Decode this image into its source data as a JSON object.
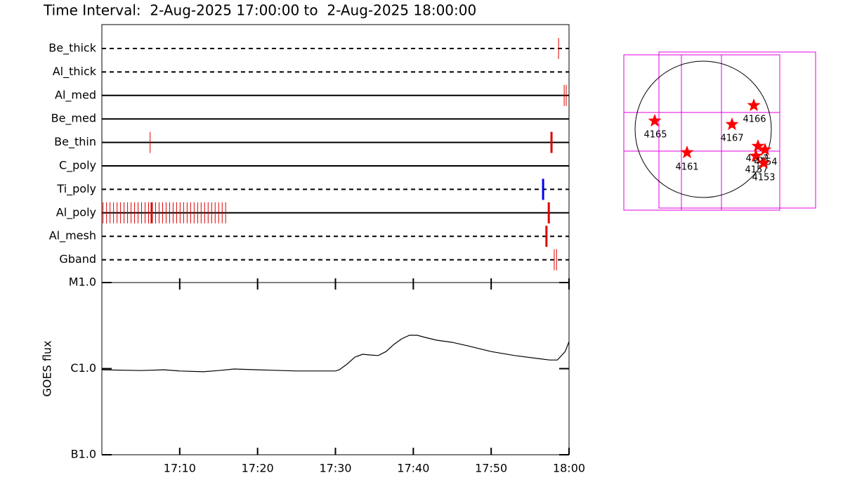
{
  "chart_data": [
    {
      "type": "timeline",
      "title": "Time Interval:  2-Aug-2025 17:00:00 to  2-Aug-2025 18:00:00",
      "xlim": [
        0,
        60
      ],
      "rows": [
        {
          "name": "Be_thick",
          "line": "dashed",
          "events": [
            {
              "x": 58.66,
              "color": "#dd0000",
              "thick": false
            }
          ]
        },
        {
          "name": "Al_thick",
          "line": "dashed",
          "events": []
        },
        {
          "name": "Al_med",
          "line": "solid",
          "events": [
            {
              "x": 59.38,
              "color": "#dd0000",
              "thick": false
            },
            {
              "x": 59.64,
              "color": "#dd0000",
              "thick": false
            }
          ]
        },
        {
          "name": "Be_med",
          "line": "solid",
          "events": []
        },
        {
          "name": "Be_thin",
          "line": "solid",
          "events": [
            {
              "x": 6.2,
              "color": "#dd0000",
              "thick": false
            },
            {
              "x": 57.75,
              "color": "#dd0000",
              "thick": true
            }
          ]
        },
        {
          "name": "C_poly",
          "line": "solid",
          "events": []
        },
        {
          "name": "Ti_poly",
          "line": "dashed",
          "events": [
            {
              "x": 56.67,
              "color": "#0000ee",
              "thick": true
            }
          ]
        },
        {
          "name": "Al_poly",
          "line": "solid",
          "events": [
            {
              "x": 0.15,
              "color": "#dd0000",
              "thick": false
            },
            {
              "x": 0.6,
              "color": "#dd0000",
              "thick": false
            },
            {
              "x": 1.05,
              "color": "#dd0000",
              "thick": false
            },
            {
              "x": 1.5,
              "color": "#dd0000",
              "thick": false
            },
            {
              "x": 1.95,
              "color": "#dd0000",
              "thick": false
            },
            {
              "x": 2.4,
              "color": "#dd0000",
              "thick": false
            },
            {
              "x": 2.85,
              "color": "#dd0000",
              "thick": false
            },
            {
              "x": 3.3,
              "color": "#dd0000",
              "thick": false
            },
            {
              "x": 3.75,
              "color": "#dd0000",
              "thick": false
            },
            {
              "x": 4.2,
              "color": "#dd0000",
              "thick": false
            },
            {
              "x": 4.65,
              "color": "#dd0000",
              "thick": false
            },
            {
              "x": 5.1,
              "color": "#dd0000",
              "thick": false
            },
            {
              "x": 5.55,
              "color": "#dd0000",
              "thick": false
            },
            {
              "x": 6.0,
              "color": "#dd0000",
              "thick": false
            },
            {
              "x": 6.4,
              "color": "#dd0000",
              "thick": true
            },
            {
              "x": 6.9,
              "color": "#dd0000",
              "thick": false
            },
            {
              "x": 7.35,
              "color": "#dd0000",
              "thick": false
            },
            {
              "x": 7.8,
              "color": "#dd0000",
              "thick": false
            },
            {
              "x": 8.25,
              "color": "#dd0000",
              "thick": false
            },
            {
              "x": 8.7,
              "color": "#dd0000",
              "thick": false
            },
            {
              "x": 9.15,
              "color": "#dd0000",
              "thick": false
            },
            {
              "x": 9.6,
              "color": "#dd0000",
              "thick": false
            },
            {
              "x": 10.05,
              "color": "#dd0000",
              "thick": false
            },
            {
              "x": 10.5,
              "color": "#dd0000",
              "thick": false
            },
            {
              "x": 10.95,
              "color": "#dd0000",
              "thick": false
            },
            {
              "x": 11.4,
              "color": "#dd0000",
              "thick": false
            },
            {
              "x": 11.85,
              "color": "#dd0000",
              "thick": false
            },
            {
              "x": 12.3,
              "color": "#dd0000",
              "thick": false
            },
            {
              "x": 12.75,
              "color": "#dd0000",
              "thick": false
            },
            {
              "x": 13.2,
              "color": "#dd0000",
              "thick": false
            },
            {
              "x": 13.65,
              "color": "#dd0000",
              "thick": false
            },
            {
              "x": 14.1,
              "color": "#dd0000",
              "thick": false
            },
            {
              "x": 14.55,
              "color": "#dd0000",
              "thick": false
            },
            {
              "x": 15.0,
              "color": "#dd0000",
              "thick": false
            },
            {
              "x": 15.45,
              "color": "#dd0000",
              "thick": false
            },
            {
              "x": 15.9,
              "color": "#dd0000",
              "thick": false
            },
            {
              "x": 57.4,
              "color": "#dd0000",
              "thick": true
            }
          ]
        },
        {
          "name": "Al_mesh",
          "line": "dashed",
          "events": [
            {
              "x": 57.1,
              "color": "#dd0000",
              "thick": true
            }
          ]
        },
        {
          "name": "Gband",
          "line": "dashed",
          "events": [
            {
              "x": 58.1,
              "color": "#dd0000",
              "thick": false
            },
            {
              "x": 58.4,
              "color": "#dd0000",
              "thick": false
            }
          ]
        }
      ]
    },
    {
      "type": "line",
      "y_label": "GOES flux",
      "log_scale": true,
      "color": "#000000",
      "xlim": [
        0,
        60
      ],
      "xticks": [
        {
          "value": 10,
          "label": "17:10"
        },
        {
          "value": 20,
          "label": "17:20"
        },
        {
          "value": 30,
          "label": "17:30"
        },
        {
          "value": 40,
          "label": "17:40"
        },
        {
          "value": 50,
          "label": "17:50"
        },
        {
          "value": 60,
          "label": "18:00"
        }
      ],
      "ylim": [
        1e-07,
        1e-05
      ],
      "yticks": [
        {
          "value": 1e-05,
          "label": "M1.0"
        },
        {
          "value": 1e-06,
          "label": "C1.0"
        },
        {
          "value": 1e-07,
          "label": "B1.0"
        }
      ],
      "x": [
        0,
        5,
        8,
        10,
        13,
        15,
        17,
        20,
        25,
        30,
        30.5,
        31.5,
        32.5,
        33.5,
        34.5,
        35.5,
        36.5,
        37.5,
        38.5,
        39.5,
        40.5,
        41.5,
        43,
        45,
        47,
        50,
        53,
        56,
        57.5,
        58.5,
        59.5,
        60
      ],
      "values": [
        9.7e-07,
        9.5e-07,
        9.7e-07,
        9.4e-07,
        9.2e-07,
        9.5e-07,
        9.9e-07,
        9.7e-07,
        9.4e-07,
        9.4e-07,
        9.7e-07,
        1.13e-06,
        1.36e-06,
        1.47e-06,
        1.44e-06,
        1.42e-06,
        1.58e-06,
        1.91e-06,
        2.22e-06,
        2.44e-06,
        2.44e-06,
        2.31e-06,
        2.14e-06,
        2.02e-06,
        1.84e-06,
        1.58e-06,
        1.42e-06,
        1.31e-06,
        1.26e-06,
        1.26e-06,
        1.58e-06,
        2.06e-06
      ]
    },
    {
      "type": "map",
      "color": "#ff0000",
      "regions": [
        "4165",
        "4161",
        "4167",
        "4166",
        "4162",
        "4157",
        "4154",
        "4153"
      ]
    }
  ]
}
